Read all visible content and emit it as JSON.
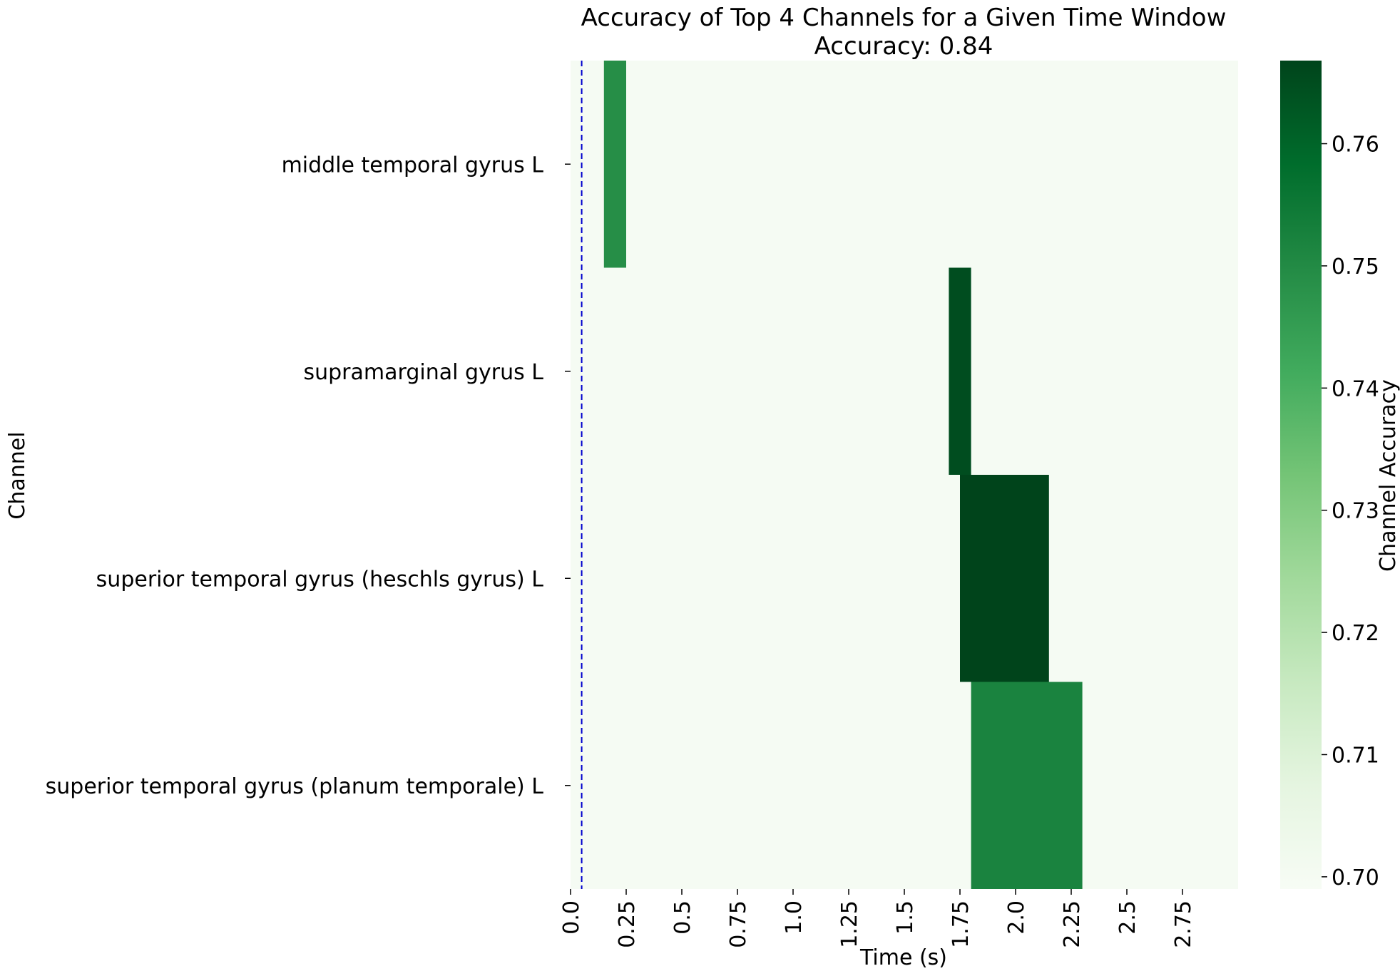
{
  "chart_data": {
    "type": "heatmap",
    "title_line1": "Accuracy of Top 4 Channels for a Given Time Window",
    "title_line2": "Accuracy: 0.84",
    "xlabel": "Time (s)",
    "ylabel": "Channel",
    "colorbar_label": "Channel Accuracy",
    "channels": [
      "middle temporal gyrus L",
      "supramarginal gyrus L",
      "superior temporal gyrus (heschls gyrus) L",
      "superior temporal gyrus (planum temporale) L"
    ],
    "x_range": [
      0.0,
      3.0
    ],
    "x_ticks": [
      "0.0",
      "0.25",
      "0.5",
      "0.75",
      "1.0",
      "1.25",
      "1.5",
      "1.75",
      "2.0",
      "2.25",
      "2.5",
      "2.75"
    ],
    "x_tick_values": [
      0.0,
      0.25,
      0.5,
      0.75,
      1.0,
      1.25,
      1.5,
      1.75,
      2.0,
      2.25,
      2.5,
      2.75
    ],
    "background_value": 0.7,
    "cells": [
      {
        "channel": "middle temporal gyrus L",
        "start": 0.15,
        "end": 0.25,
        "value": 0.749
      },
      {
        "channel": "supramarginal gyrus L",
        "start": 1.7,
        "end": 1.8,
        "value": 0.765
      },
      {
        "channel": "superior temporal gyrus (heschls gyrus) L",
        "start": 1.75,
        "end": 2.15,
        "value": 0.767
      },
      {
        "channel": "superior temporal gyrus (planum temporale) L",
        "start": 1.8,
        "end": 2.3,
        "value": 0.752
      }
    ],
    "vline": {
      "x": 0.05,
      "color": "#0000cc",
      "style": "dashed"
    },
    "colorbar": {
      "vmin": 0.699,
      "vmax": 0.7668,
      "ticks": [
        "0.70",
        "0.71",
        "0.72",
        "0.73",
        "0.74",
        "0.75",
        "0.76"
      ],
      "tick_values": [
        0.7,
        0.71,
        0.72,
        0.73,
        0.74,
        0.75,
        0.76
      ],
      "colormap": "Greens"
    },
    "grid": false
  }
}
